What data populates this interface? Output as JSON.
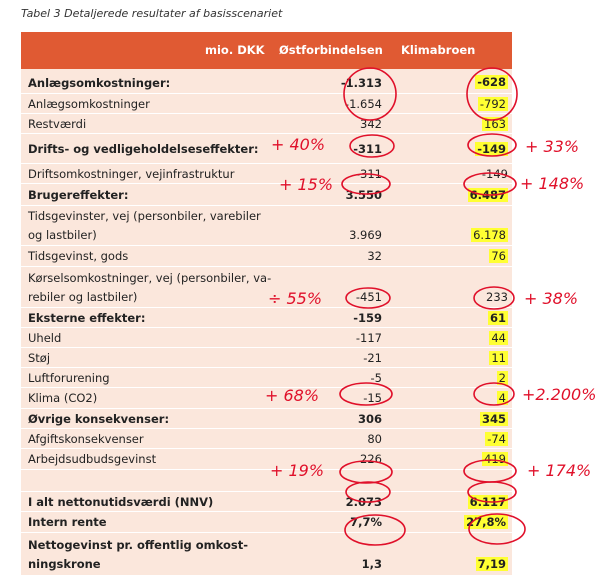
{
  "caption": "Tabel 3 Detaljerede resultater af basisscenariet",
  "header": {
    "unit": "mio. DKK",
    "col1": "Østforbindelsen",
    "col2": "Klimabroen"
  },
  "rows": [
    {
      "label": "Anlægsomkostninger:",
      "v1": "-1.313",
      "v2": "-628"
    },
    {
      "label": "Anlægsomkostninger",
      "v1": "-1.654",
      "v2": "-792"
    },
    {
      "label": "Restværdi",
      "v1": "342",
      "v2": "163"
    },
    {
      "label": "Drifts- og vedligeholdelseseffekter:",
      "v1": "-311",
      "v2": "-149"
    },
    {
      "label": "Driftsomkostninger, vejinfrastruktur",
      "v1": "-311",
      "v2": "-149"
    },
    {
      "label": "Brugereffekter:",
      "v1": "3.550",
      "v2": "6.487"
    },
    {
      "label": "Tidsgevinster, vej (personbiler, varebiler",
      "label2": "og lastbiler)",
      "v1": "3.969",
      "v2": "6.178"
    },
    {
      "label": "Tidsgevinst, gods",
      "v1": "32",
      "v2": "76"
    },
    {
      "label": "Kørselsomkostninger, vej (personbiler, va-",
      "label2": "rebiler og lastbiler)",
      "v1": "-451",
      "v2": "233"
    },
    {
      "label": "Eksterne effekter:",
      "v1": "-159",
      "v2": "61"
    },
    {
      "label": "Uheld",
      "v1": "-117",
      "v2": "44"
    },
    {
      "label": "Støj",
      "v1": "-21",
      "v2": "11"
    },
    {
      "label": "Luftforurening",
      "v1": "-5",
      "v2": "2"
    },
    {
      "label": "Klima (CO2)",
      "v1": "-15",
      "v2": "4"
    },
    {
      "label": "Øvrige konsekvenser:",
      "v1": "306",
      "v2": "345"
    },
    {
      "label": "Afgiftskonsekvenser",
      "v1": "80",
      "v2": "-74"
    },
    {
      "label": "Arbejdsudbudsgevinst",
      "v1": "226",
      "v2": "419"
    },
    {
      "label": "I alt nettonutidsværdi (NNV)",
      "v1": "2.073",
      "v2": "6.117"
    },
    {
      "label": "Intern rente",
      "v1": "7,7%",
      "v2": "27,8%"
    },
    {
      "label": "Nettogevinst pr. offentlig omkost-",
      "label2": "ningskrone",
      "v1": "1,3",
      "v2": "7,19"
    }
  ],
  "annotations": {
    "drift_left": "+ 40%",
    "drift_right": "+ 33%",
    "bruger_left": "+ 15%",
    "bruger_right": "+ 148%",
    "eksterne_left": "÷ 55%",
    "eksterne_right": "+ 38%",
    "ovrige_left": "+ 68%",
    "ovrige_right": "+2.200%",
    "nnv_left": "+ 19%",
    "nnv_right": "+ 174%"
  },
  "colors": {
    "header_bg": "#e05a33",
    "row_bg": "#fbe7dc",
    "highlight": "#ffff33",
    "ink": "#e0102a"
  }
}
